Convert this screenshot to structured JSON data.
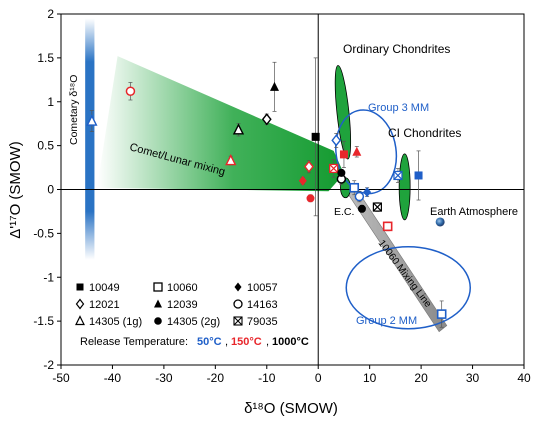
{
  "chart_data": {
    "type": "scatter",
    "xlabel": "δ¹⁸O (SMOW)",
    "ylabel": "Δ'¹⁷O (SMOW)",
    "xlim": [
      -50,
      40
    ],
    "ylim": [
      -2,
      2
    ],
    "x_ticks": [
      "-50",
      "-40",
      "-30",
      "-20",
      "-10",
      "0",
      "10",
      "20",
      "30",
      "40"
    ],
    "y_ticks": [
      "2",
      "1.5",
      "1",
      "0.5",
      "0",
      "-0.5",
      "-1",
      "-1.5",
      "-2"
    ],
    "grid": false,
    "annotations": {
      "cometary": "Cometary δ¹⁸O",
      "mixing": "Comet/Lunar mixing",
      "oc": "Ordinary Chondrites",
      "group3": "Group 3 MM",
      "ci": "CI Chondrites",
      "ec": "E.C.",
      "earth": "Earth Atmosphere",
      "mixline": "10060 Mixing Line",
      "group2": "Group 2 MM"
    },
    "legend": {
      "placement": "bottom-left",
      "entries": [
        "10049",
        "10060",
        "10057",
        "12021",
        "12039",
        "14163",
        "14305 (1g)",
        "14305 (2g)",
        "79035"
      ],
      "release_label": "Release Temperature:",
      "temps": [
        {
          "label": "50°C",
          "color": "#1f5fc8"
        },
        {
          "label": "150°C",
          "color": "#e8262b"
        },
        {
          "label": "1000°C",
          "color": "#000000"
        }
      ]
    },
    "colors": {
      "c50": "#1f5fc8",
      "c150": "#e8262b",
      "c1000": "#000000",
      "green": "#1fa33c",
      "blue_band": "#2a73c4"
    },
    "points": [
      {
        "sample": "14305 (1g)",
        "marker": "triangle-open",
        "temp": "50",
        "x": -44,
        "y": 0.78,
        "err": 0.12
      },
      {
        "sample": "14163",
        "marker": "circle-open",
        "temp": "150",
        "x": -36.5,
        "y": 1.12,
        "err": 0.1
      },
      {
        "sample": "14305 (1g)",
        "marker": "triangle-open",
        "temp": "1000",
        "x": -15.5,
        "y": 0.68,
        "err": 0.07
      },
      {
        "sample": "14305 (1g)",
        "marker": "triangle-open",
        "temp": "150",
        "x": -17,
        "y": 0.33,
        "err": 0.05
      },
      {
        "sample": "12039",
        "marker": "triangle",
        "temp": "1000",
        "x": -8.5,
        "y": 1.17,
        "err": 0.28
      },
      {
        "sample": "12021",
        "marker": "diamond-open",
        "temp": "1000",
        "x": -10,
        "y": 0.8,
        "err": 0.06
      },
      {
        "sample": "10049",
        "marker": "square",
        "temp": "1000",
        "x": -0.5,
        "y": 0.6,
        "err": 0.9
      },
      {
        "sample": "12021",
        "marker": "diamond-open",
        "temp": "150",
        "x": -1.8,
        "y": 0.26,
        "err": 0.07
      },
      {
        "sample": "10057",
        "marker": "diamond",
        "temp": "150",
        "x": -3,
        "y": 0.1,
        "err": 0.04
      },
      {
        "sample": "14305 (2g)",
        "marker": "circle",
        "temp": "150",
        "x": -1.5,
        "y": -0.1,
        "err": 0.04
      },
      {
        "sample": "79035",
        "marker": "xbox",
        "temp": "150",
        "x": 3,
        "y": 0.24,
        "err": 0.1
      },
      {
        "sample": "14163",
        "marker": "circle-open",
        "temp": "1000",
        "x": 4.5,
        "y": 0.12,
        "err": 0.06
      },
      {
        "sample": "14305 (2g)",
        "marker": "circle",
        "temp": "1000",
        "x": 4.5,
        "y": 0.19,
        "err": 0.04
      },
      {
        "sample": "12021",
        "marker": "diamond-open",
        "temp": "50",
        "x": 3.5,
        "y": 0.56,
        "err": 0.08
      },
      {
        "sample": "10049",
        "marker": "square",
        "temp": "150",
        "x": 5,
        "y": 0.4,
        "err": 0.15
      },
      {
        "sample": "12039",
        "marker": "triangle",
        "temp": "150",
        "x": 7.5,
        "y": 0.43,
        "err": 0.06
      },
      {
        "sample": "10060",
        "marker": "square-open",
        "temp": "50",
        "x": 7,
        "y": 0.02,
        "err": 0.08
      },
      {
        "sample": "14163",
        "marker": "circle-open",
        "temp": "50",
        "x": 8,
        "y": -0.08,
        "err": 0.06
      },
      {
        "sample": "14305 (2g)",
        "marker": "circle",
        "temp": "1000",
        "x": 8.5,
        "y": -0.22,
        "err": 0.04
      },
      {
        "sample": "10057",
        "marker": "diamond",
        "temp": "50",
        "x": 9.5,
        "y": -0.03,
        "err": 0.05
      },
      {
        "sample": "79035",
        "marker": "xbox",
        "temp": "1000",
        "x": 11.5,
        "y": -0.2,
        "err": 0.05
      },
      {
        "sample": "79035",
        "marker": "xbox",
        "temp": "50",
        "x": 15.5,
        "y": 0.16,
        "err": 0.08
      },
      {
        "sample": "10049",
        "marker": "square",
        "temp": "50",
        "x": 19.5,
        "y": 0.16,
        "err": 0.28
      },
      {
        "sample": "10060",
        "marker": "square-open",
        "temp": "150",
        "x": 13.5,
        "y": -0.42,
        "err": 0.05
      },
      {
        "sample": "10060",
        "marker": "square-open",
        "temp": "50",
        "x": 24,
        "y": -1.42,
        "err": 0.15
      }
    ]
  }
}
